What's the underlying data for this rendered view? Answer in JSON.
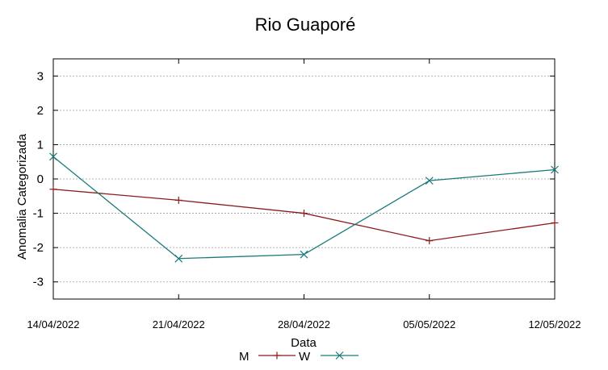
{
  "chart_data": {
    "type": "line",
    "title": "Rio Guaporé",
    "xlabel": "Data",
    "ylabel": "Anomalia Categorizada",
    "categories": [
      "14/04/2022",
      "21/04/2022",
      "28/04/2022",
      "05/05/2022",
      "12/05/2022"
    ],
    "yticks": [
      "3",
      "2",
      "1",
      "0",
      "-1",
      "-2",
      "-3"
    ],
    "ylim": [
      -3.5,
      3.5
    ],
    "grid": true,
    "legend_position": "bottom-center",
    "series": [
      {
        "name": "M",
        "color": "#8b1a1a",
        "marker": "plus",
        "values": [
          -0.3,
          -0.62,
          -1.0,
          -1.8,
          -1.28
        ]
      },
      {
        "name": "W",
        "color": "#1a7a7a",
        "marker": "x",
        "values": [
          0.65,
          -2.32,
          -2.2,
          -0.05,
          0.27
        ]
      }
    ]
  }
}
